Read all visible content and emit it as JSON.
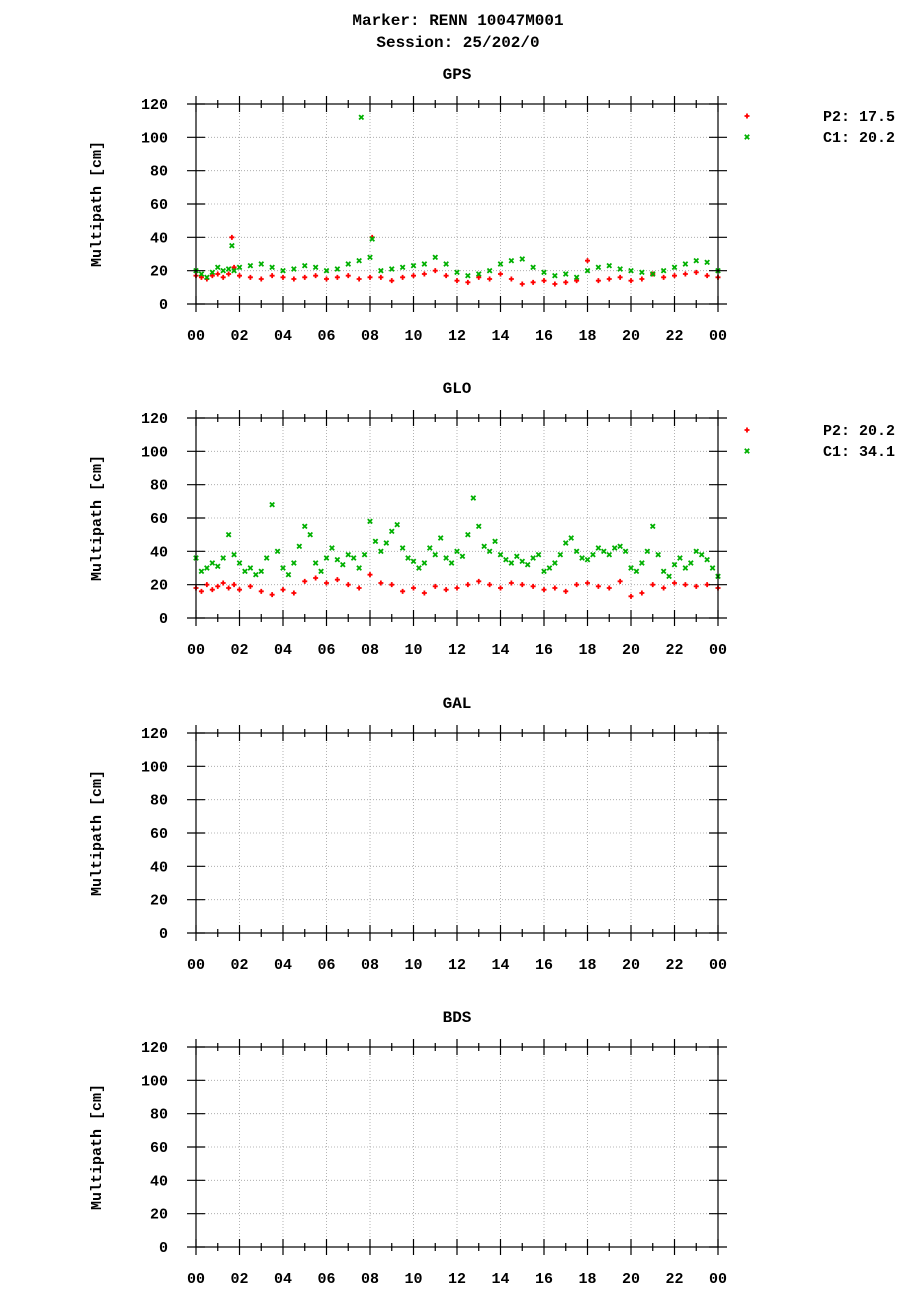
{
  "header": {
    "line1": "Marker: RENN 10047M001",
    "line2": "Session: 25/202/0"
  },
  "colors": {
    "p2": "#ff0000",
    "c1": "#00b000",
    "grid": "#a0a0a0",
    "axis": "#000000"
  },
  "chart_data": [
    {
      "type": "scatter",
      "title": "GPS",
      "ylabel": "Multipath [cm]",
      "ylim": [
        0,
        120
      ],
      "yticks": [
        "0",
        "20",
        "40",
        "60",
        "80",
        "100",
        "120"
      ],
      "xlim": [
        0,
        24
      ],
      "xticks": [
        "00",
        "02",
        "04",
        "06",
        "08",
        "10",
        "12",
        "14",
        "16",
        "18",
        "20",
        "22",
        "00"
      ],
      "grid": true,
      "legend_position": "right",
      "legend": [
        {
          "label": "P2: 17.5",
          "marker": "+",
          "color": "#ff0000"
        },
        {
          "label": "C1: 20.2",
          "marker": "x",
          "color": "#00b000"
        }
      ],
      "series": [
        {
          "name": "P2: 17.5",
          "marker": "+",
          "color": "#ff0000",
          "x": [
            0,
            0.25,
            0.5,
            0.75,
            1,
            1.25,
            1.5,
            1.65,
            1.75,
            2,
            2.5,
            3,
            3.5,
            4,
            4.5,
            5,
            5.5,
            6,
            6.5,
            7,
            7.5,
            8,
            8.1,
            8.5,
            9,
            9.5,
            10,
            10.5,
            11,
            11.5,
            12,
            12.5,
            13,
            13.5,
            14,
            14.5,
            15,
            15.5,
            16,
            16.5,
            17,
            17.5,
            18,
            18.5,
            19,
            19.5,
            20,
            20.5,
            21,
            21.5,
            22,
            22.5,
            23,
            23.5,
            24
          ],
          "y": [
            17,
            16,
            15,
            17,
            18,
            16,
            18,
            40,
            22,
            17,
            16,
            15,
            17,
            16,
            15,
            16,
            17,
            15,
            16,
            17,
            15,
            16,
            40,
            16,
            14,
            16,
            17,
            18,
            20,
            17,
            14,
            13,
            16,
            15,
            18,
            15,
            12,
            13,
            14,
            12,
            13,
            14,
            26,
            14,
            15,
            16,
            14,
            15,
            18,
            16,
            17,
            18,
            19,
            17,
            16
          ]
        },
        {
          "name": "C1: 20.2",
          "marker": "x",
          "color": "#00b000",
          "x": [
            0,
            0.25,
            0.5,
            0.75,
            1,
            1.25,
            1.5,
            1.65,
            1.75,
            2,
            2.5,
            3,
            3.5,
            4,
            4.5,
            5,
            5.5,
            6,
            6.5,
            7,
            7.5,
            7.6,
            8,
            8.1,
            8.5,
            9,
            9.5,
            10,
            10.5,
            11,
            11.5,
            12,
            12.5,
            13,
            13.5,
            14,
            14.5,
            15,
            15.5,
            16,
            16.5,
            17,
            17.5,
            18,
            18.5,
            19,
            19.5,
            20,
            20.5,
            21,
            21.5,
            22,
            22.5,
            23,
            23.5,
            24
          ],
          "y": [
            20,
            18,
            16,
            19,
            22,
            20,
            21,
            35,
            20,
            22,
            23,
            24,
            22,
            20,
            21,
            23,
            22,
            20,
            21,
            24,
            26,
            112,
            28,
            39,
            20,
            21,
            22,
            23,
            24,
            28,
            24,
            19,
            17,
            18,
            20,
            24,
            26,
            27,
            22,
            19,
            17,
            18,
            16,
            20,
            22,
            23,
            21,
            20,
            19,
            18,
            20,
            22,
            24,
            26,
            25,
            20
          ]
        }
      ]
    },
    {
      "type": "scatter",
      "title": "GLO",
      "ylabel": "Multipath [cm]",
      "ylim": [
        0,
        120
      ],
      "yticks": [
        "0",
        "20",
        "40",
        "60",
        "80",
        "100",
        "120"
      ],
      "xlim": [
        0,
        24
      ],
      "xticks": [
        "00",
        "02",
        "04",
        "06",
        "08",
        "10",
        "12",
        "14",
        "16",
        "18",
        "20",
        "22",
        "00"
      ],
      "grid": true,
      "legend_position": "right",
      "legend": [
        {
          "label": "P2: 20.2",
          "marker": "+",
          "color": "#ff0000"
        },
        {
          "label": "C1: 34.1",
          "marker": "x",
          "color": "#00b000"
        }
      ],
      "series": [
        {
          "name": "P2: 20.2",
          "marker": "+",
          "color": "#ff0000",
          "x": [
            0,
            0.25,
            0.5,
            0.75,
            1,
            1.25,
            1.5,
            1.75,
            2,
            2.5,
            3,
            3.5,
            4,
            4.5,
            5,
            5.5,
            6,
            6.5,
            7,
            7.5,
            8,
            8.5,
            9,
            9.5,
            10,
            10.5,
            11,
            11.5,
            12,
            12.5,
            13,
            13.5,
            14,
            14.5,
            15,
            15.5,
            16,
            16.5,
            17,
            17.5,
            18,
            18.5,
            19,
            19.5,
            20,
            20.5,
            21,
            21.5,
            22,
            22.5,
            23,
            23.5,
            24
          ],
          "y": [
            18,
            16,
            20,
            17,
            19,
            21,
            18,
            20,
            17,
            19,
            16,
            14,
            17,
            15,
            22,
            24,
            21,
            23,
            20,
            18,
            26,
            21,
            20,
            16,
            18,
            15,
            19,
            17,
            18,
            20,
            22,
            20,
            18,
            21,
            20,
            19,
            17,
            18,
            16,
            20,
            21,
            19,
            18,
            22,
            13,
            15,
            20,
            18,
            21,
            20,
            19,
            20,
            18
          ]
        },
        {
          "name": "C1: 34.1",
          "marker": "x",
          "color": "#00b000",
          "x": [
            0,
            0.25,
            0.5,
            0.75,
            1,
            1.25,
            1.5,
            1.75,
            2,
            2.25,
            2.5,
            2.75,
            3,
            3.25,
            3.5,
            3.75,
            4,
            4.25,
            4.5,
            4.75,
            5,
            5.25,
            5.5,
            5.75,
            6,
            6.25,
            6.5,
            6.75,
            7,
            7.25,
            7.5,
            7.75,
            8,
            8.25,
            8.5,
            8.75,
            9,
            9.25,
            9.5,
            9.75,
            10,
            10.25,
            10.5,
            10.75,
            11,
            11.25,
            11.5,
            11.75,
            12,
            12.25,
            12.5,
            12.75,
            13,
            13.25,
            13.5,
            13.75,
            14,
            14.25,
            14.5,
            14.75,
            15,
            15.25,
            15.5,
            15.75,
            16,
            16.25,
            16.5,
            16.75,
            17,
            17.25,
            17.5,
            17.75,
            18,
            18.25,
            18.5,
            18.75,
            19,
            19.25,
            19.5,
            19.75,
            20,
            20.25,
            20.5,
            20.75,
            21,
            21.25,
            21.5,
            21.75,
            22,
            22.25,
            22.5,
            22.75,
            23,
            23.25,
            23.5,
            23.75,
            24
          ],
          "y": [
            36,
            28,
            30,
            33,
            31,
            36,
            50,
            38,
            33,
            28,
            30,
            26,
            28,
            36,
            68,
            40,
            30,
            26,
            33,
            43,
            55,
            50,
            33,
            28,
            36,
            42,
            35,
            32,
            38,
            36,
            30,
            38,
            58,
            46,
            40,
            45,
            52,
            56,
            42,
            36,
            34,
            30,
            33,
            42,
            38,
            48,
            36,
            33,
            40,
            37,
            50,
            72,
            55,
            43,
            40,
            46,
            38,
            35,
            33,
            37,
            34,
            32,
            36,
            38,
            28,
            30,
            33,
            38,
            45,
            48,
            40,
            36,
            35,
            38,
            42,
            40,
            38,
            42,
            43,
            40,
            30,
            28,
            33,
            40,
            55,
            38,
            28,
            25,
            32,
            36,
            30,
            33,
            40,
            38,
            35,
            30,
            25
          ]
        }
      ]
    },
    {
      "type": "scatter",
      "title": "GAL",
      "ylabel": "Multipath [cm]",
      "ylim": [
        0,
        120
      ],
      "yticks": [
        "0",
        "20",
        "40",
        "60",
        "80",
        "100",
        "120"
      ],
      "xlim": [
        0,
        24
      ],
      "xticks": [
        "00",
        "02",
        "04",
        "06",
        "08",
        "10",
        "12",
        "14",
        "16",
        "18",
        "20",
        "22",
        "00"
      ],
      "grid": true,
      "legend": [],
      "series": []
    },
    {
      "type": "scatter",
      "title": "BDS",
      "ylabel": "Multipath [cm]",
      "ylim": [
        0,
        120
      ],
      "yticks": [
        "0",
        "20",
        "40",
        "60",
        "80",
        "100",
        "120"
      ],
      "xlim": [
        0,
        24
      ],
      "xticks": [
        "00",
        "02",
        "04",
        "06",
        "08",
        "10",
        "12",
        "14",
        "16",
        "18",
        "20",
        "22",
        "00"
      ],
      "grid": true,
      "legend": [],
      "series": []
    }
  ]
}
